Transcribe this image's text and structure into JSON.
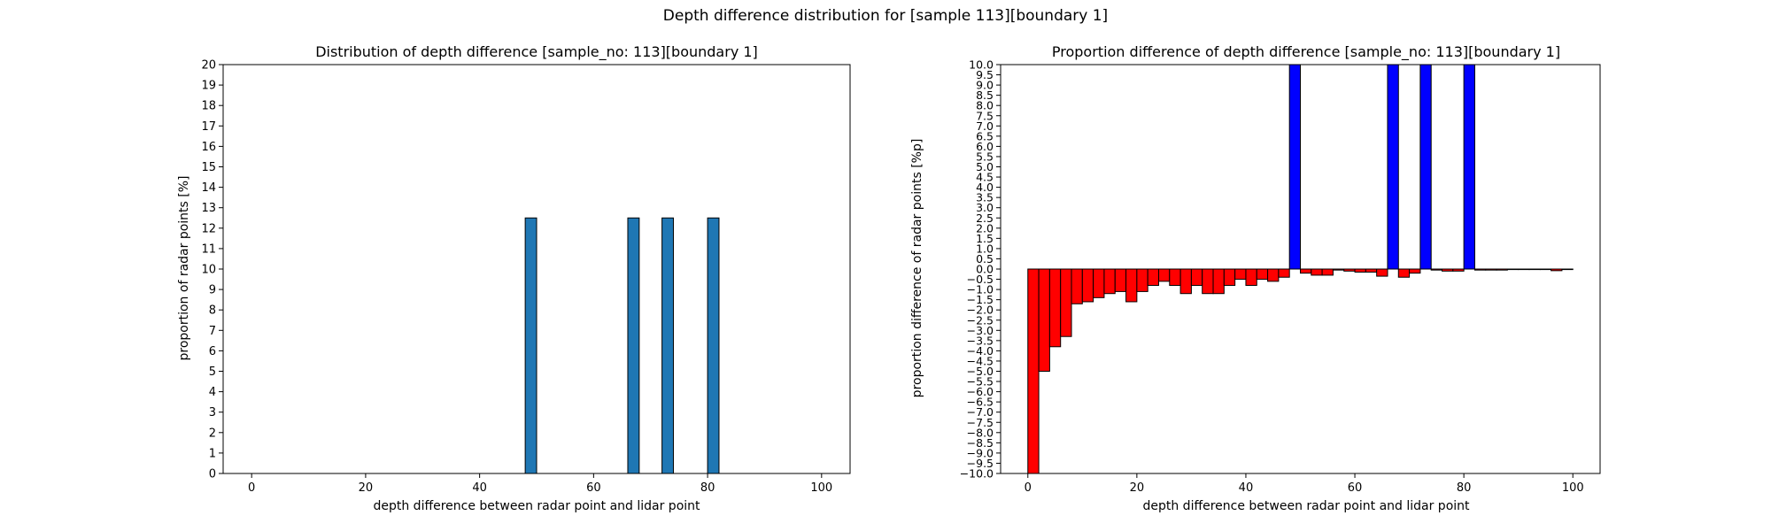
{
  "figure": {
    "suptitle": "Depth difference distribution for [sample 113][boundary 1]"
  },
  "chart_data": [
    {
      "type": "bar",
      "title": "Distribution of depth difference [sample_no: 113][boundary 1]",
      "xlabel": "depth difference between radar point and lidar point",
      "ylabel": "proportion of radar points [%]",
      "xlim": [
        -5,
        105
      ],
      "ylim": [
        0,
        20
      ],
      "xticks": [
        0,
        20,
        40,
        60,
        80,
        100
      ],
      "yticks": [
        0,
        1,
        2,
        3,
        4,
        5,
        6,
        7,
        8,
        9,
        10,
        11,
        12,
        13,
        14,
        15,
        16,
        17,
        18,
        19,
        20
      ],
      "bar_width": 2,
      "bar_color": "#1f77b4",
      "edge_color": "#000000",
      "x": [
        49,
        67,
        73,
        81
      ],
      "values": [
        12.5,
        12.5,
        12.5,
        12.5
      ]
    },
    {
      "type": "bar",
      "title": "Proportion difference of depth difference [sample_no: 113][boundary 1]",
      "xlabel": "depth difference between radar point and lidar point",
      "ylabel": "proportion difference of radar points [%p]",
      "xlim": [
        -5,
        105
      ],
      "ylim": [
        -10,
        10
      ],
      "xticks": [
        0,
        20,
        40,
        60,
        80,
        100
      ],
      "ytick_step": 0.5,
      "bar_width": 2,
      "positive_color": "#0000ff",
      "negative_color": "#ff0000",
      "edge_color": "#000000",
      "x": [
        1,
        3,
        5,
        7,
        9,
        11,
        13,
        15,
        17,
        19,
        21,
        23,
        25,
        27,
        29,
        31,
        33,
        35,
        37,
        39,
        41,
        43,
        45,
        47,
        49,
        51,
        53,
        55,
        57,
        59,
        61,
        63,
        65,
        67,
        69,
        71,
        73,
        75,
        77,
        79,
        81,
        83,
        85,
        87,
        89,
        91,
        93,
        95,
        97,
        99
      ],
      "values": [
        -10.0,
        -5.0,
        -3.8,
        -3.3,
        -1.7,
        -1.6,
        -1.4,
        -1.2,
        -1.1,
        -1.6,
        -1.1,
        -0.8,
        -0.6,
        -0.8,
        -1.2,
        -0.8,
        -1.2,
        -1.2,
        -0.8,
        -0.5,
        -0.8,
        -0.5,
        -0.6,
        -0.4,
        10.0,
        -0.2,
        -0.3,
        -0.3,
        -0.05,
        -0.1,
        -0.15,
        -0.15,
        -0.35,
        10.0,
        -0.4,
        -0.2,
        10.0,
        -0.05,
        -0.1,
        -0.1,
        10.0,
        -0.05,
        -0.05,
        -0.05,
        -0.02,
        -0.02,
        -0.02,
        -0.02,
        -0.08,
        -0.02
      ]
    }
  ]
}
